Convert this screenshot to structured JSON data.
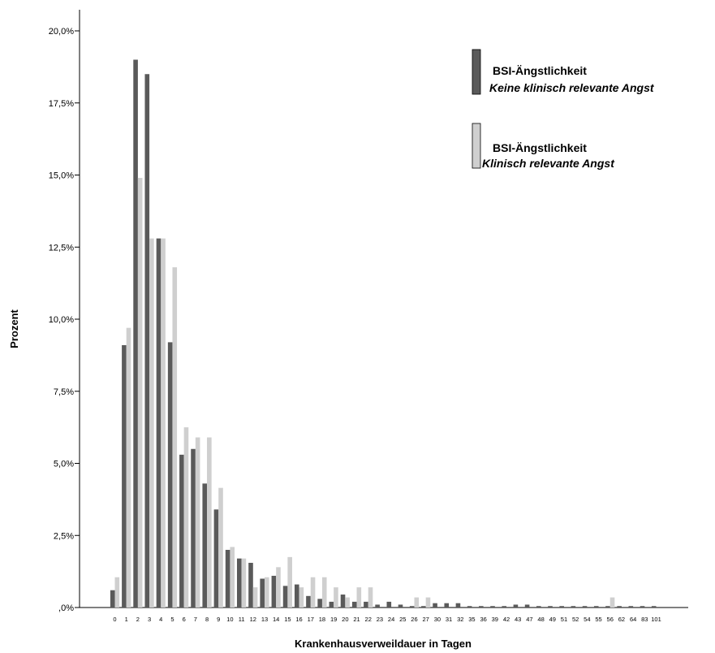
{
  "chart_data": {
    "type": "bar",
    "ylabel": "Prozent",
    "xlabel": "Krankenhausverweildauer in Tagen",
    "ylim": [
      0,
      20
    ],
    "yticks": [
      "0,0%",
      "2,5%",
      "5,0%",
      "7,5%",
      "10,0%",
      "12,5%",
      "15,0%",
      "17,5%",
      "20,0%"
    ],
    "ytick_labels": [
      ",0%",
      "2,5%",
      "5,0%",
      "7,5%",
      "10,0%",
      "12,5%",
      "15,0%",
      "17,5%",
      "20,0%"
    ],
    "ytick_values": [
      0,
      2.5,
      5,
      7.5,
      10,
      12.5,
      15,
      17.5,
      20
    ],
    "grid": false,
    "legend_placement": "top-right",
    "categories": [
      "0",
      "1",
      "2",
      "3",
      "4",
      "5",
      "6",
      "7",
      "8",
      "9",
      "10",
      "11",
      "12",
      "13",
      "14",
      "15",
      "16",
      "17",
      "18",
      "19",
      "20",
      "21",
      "22",
      "23",
      "24",
      "25",
      "26",
      "27",
      "30",
      "31",
      "32",
      "35",
      "36",
      "39",
      "42",
      "43",
      "47",
      "48",
      "49",
      "51",
      "52",
      "54",
      "55",
      "56",
      "62",
      "64",
      "83",
      "101"
    ],
    "series": [
      {
        "name": "BSI-Ängstlichkeit",
        "subtitle": "Keine klinisch relevante Angst",
        "color": "#5a5a5a",
        "values": [
          0.6,
          9.1,
          19.0,
          18.5,
          12.8,
          9.2,
          5.3,
          5.5,
          4.3,
          3.4,
          2.0,
          1.7,
          1.55,
          1.0,
          1.1,
          0.75,
          0.8,
          0.4,
          0.3,
          0.2,
          0.45,
          0.2,
          0.2,
          0.1,
          0.2,
          0.1,
          0.05,
          0.05,
          0.15,
          0.15,
          0.15,
          0.05,
          0.05,
          0.05,
          0.05,
          0.1,
          0.1,
          0.05,
          0.05,
          0.05,
          0.05,
          0.05,
          0.05,
          0.05,
          0.05,
          0.05,
          0.05,
          0.05
        ]
      },
      {
        "name": "BSI-Ängstlichkeit",
        "subtitle": "Klinisch relevante Angst",
        "color": "#cfcfcf",
        "values": [
          1.05,
          9.7,
          14.9,
          12.8,
          12.8,
          11.8,
          6.25,
          5.9,
          5.9,
          4.15,
          2.1,
          1.7,
          0.7,
          1.05,
          1.4,
          1.75,
          0.7,
          1.05,
          1.05,
          0.7,
          0.35,
          0.7,
          0.7,
          0,
          0,
          0,
          0.35,
          0.35,
          0,
          0,
          0,
          0,
          0,
          0,
          0,
          0,
          0,
          0,
          0,
          0,
          0,
          0,
          0,
          0.35,
          0,
          0,
          0,
          0
        ]
      }
    ]
  }
}
